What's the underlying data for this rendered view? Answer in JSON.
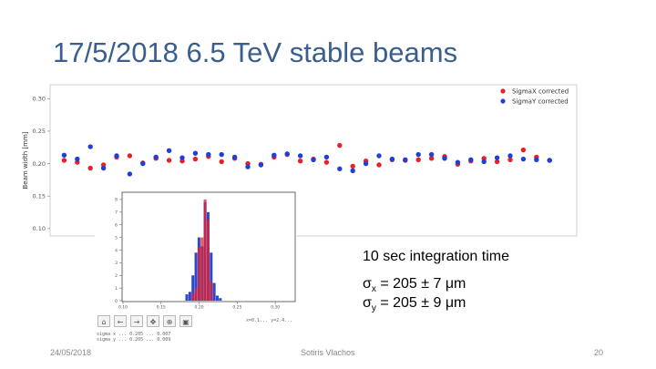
{
  "slide": {
    "title": "17/5/2018 6.5 TeV stable beams",
    "integration_text": "10 sec integration time",
    "sigma_x": {
      "symbol": "σ",
      "subscript": "x",
      "value": " = 205 ± 7 μm"
    },
    "sigma_y": {
      "symbol": "σ",
      "subscript": "y",
      "value": " = 205 ± 9 μm"
    },
    "footer": {
      "date": "24/05/2018",
      "author": "Sotiris Vlachos",
      "page": "20"
    }
  },
  "toolbar": {
    "buttons": [
      {
        "name": "home",
        "glyph": "⌂"
      },
      {
        "name": "back",
        "glyph": "←"
      },
      {
        "name": "forward",
        "glyph": "→"
      },
      {
        "name": "pan",
        "glyph": "✥"
      },
      {
        "name": "zoom",
        "glyph": "⊕"
      },
      {
        "name": "save",
        "glyph": "▣"
      }
    ],
    "readout": "x=0.1... y=2.4..."
  },
  "fit_results": [
    "sigma x  ...  0.205 ...  0.007",
    "sigma y  ...  0.205 ...  0.009"
  ],
  "colors": {
    "sigmaX": "#e8202a",
    "sigmaY": "#1f3fd6",
    "title": "#3a5f8f"
  },
  "chart_data": [
    {
      "type": "scatter",
      "ylabel": "Beam width [mm]",
      "ylim": [
        0.09,
        0.32
      ],
      "xlim": [
        0,
        40
      ],
      "yticks": [
        0.1,
        0.15,
        0.2,
        0.25,
        0.3
      ],
      "grid": false,
      "legend": "top-right",
      "series": [
        {
          "name": "SigmaX corrected",
          "color": "#e8202a",
          "x": [
            1,
            2,
            3,
            4,
            5,
            6,
            7,
            8,
            9,
            10,
            11,
            12,
            13,
            14,
            15,
            16,
            17,
            18,
            19,
            20,
            21,
            22,
            23,
            24,
            25,
            26,
            27,
            28,
            29,
            30,
            31,
            32,
            33,
            34,
            35,
            36,
            37,
            38
          ],
          "y": [
            0.205,
            0.202,
            0.193,
            0.198,
            0.21,
            0.212,
            0.201,
            0.208,
            0.205,
            0.204,
            0.207,
            0.211,
            0.203,
            0.208,
            0.2,
            0.199,
            0.21,
            0.214,
            0.204,
            0.207,
            0.202,
            0.228,
            0.196,
            0.204,
            0.198,
            0.206,
            0.205,
            0.206,
            0.208,
            0.211,
            0.199,
            0.204,
            0.208,
            0.203,
            0.206,
            0.221,
            0.21,
            0.205
          ]
        },
        {
          "name": "SigmaY corrected",
          "color": "#1f3fd6",
          "x": [
            1,
            2,
            3,
            4,
            5,
            6,
            7,
            8,
            9,
            10,
            11,
            12,
            13,
            14,
            15,
            16,
            17,
            18,
            19,
            20,
            21,
            22,
            23,
            24,
            25,
            26,
            27,
            28,
            29,
            30,
            31,
            32,
            33,
            34,
            35,
            36,
            37,
            38
          ],
          "y": [
            0.213,
            0.207,
            0.226,
            0.193,
            0.212,
            0.184,
            0.2,
            0.21,
            0.22,
            0.209,
            0.216,
            0.214,
            0.214,
            0.21,
            0.195,
            0.198,
            0.213,
            0.215,
            0.212,
            0.206,
            0.21,
            0.192,
            0.189,
            0.2,
            0.212,
            0.207,
            0.206,
            0.214,
            0.214,
            0.208,
            0.202,
            0.206,
            0.203,
            0.209,
            0.212,
            0.207,
            0.206,
            0.205
          ]
        }
      ]
    },
    {
      "type": "bar",
      "histogram": true,
      "xlim": [
        0.1,
        0.325
      ],
      "xticks": [
        0.1,
        0.15,
        0.2,
        0.25,
        0.3
      ],
      "xtick_labels": [
        "0.10",
        "0.15",
        "0.20",
        "0.25",
        "0.30"
      ],
      "ylim": [
        0,
        8.5
      ],
      "yticks": [
        0,
        1,
        2,
        3,
        4,
        5,
        6,
        7,
        8
      ],
      "bin_width": 0.004,
      "series": [
        {
          "name": "SigmaY corrected",
          "color": "#2040cc",
          "bins_start": [
            0.182,
            0.186,
            0.19,
            0.194,
            0.198,
            0.202,
            0.206,
            0.21,
            0.214,
            0.218,
            0.222,
            0.226
          ],
          "counts": [
            0.5,
            0.7,
            2.0,
            3.8,
            5.0,
            4.3,
            7.8,
            7.0,
            3.8,
            1.4,
            0.4,
            0.2
          ]
        },
        {
          "name": "SigmaX corrected",
          "color": "#e8202a",
          "bins_start": [
            0.19,
            0.194,
            0.198,
            0.202,
            0.206,
            0.21,
            0.214
          ],
          "counts": [
            0.6,
            1.0,
            4.2,
            5.0,
            8.0,
            6.4,
            1.5
          ]
        }
      ]
    }
  ]
}
